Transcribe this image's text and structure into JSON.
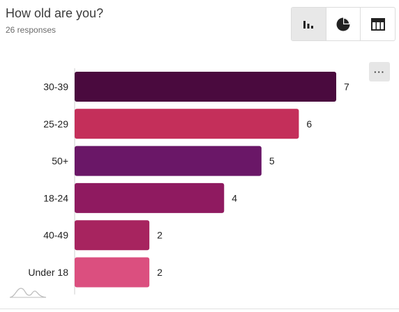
{
  "header": {
    "title": "How old are you?",
    "responses_label": "26 responses"
  },
  "toolbar": {
    "views": [
      {
        "icon": "bar-chart-icon",
        "active": true
      },
      {
        "icon": "pie-chart-icon",
        "active": false
      },
      {
        "icon": "table-icon",
        "active": false
      }
    ],
    "more_label": "···"
  },
  "colors": {
    "30-39": "#4a0a3e",
    "25-29": "#c42f5a",
    "50+": "#6a1767",
    "18-24": "#8f1a60",
    "40-49": "#a7245f",
    "Under 18": "#db4f7f"
  },
  "chart_data": {
    "type": "bar",
    "orientation": "horizontal",
    "categories": [
      "30-39",
      "25-29",
      "50+",
      "18-24",
      "40-49",
      "Under 18"
    ],
    "values": [
      7,
      6,
      5,
      4,
      2,
      2
    ],
    "xlim": [
      0,
      7
    ],
    "grid": false
  }
}
